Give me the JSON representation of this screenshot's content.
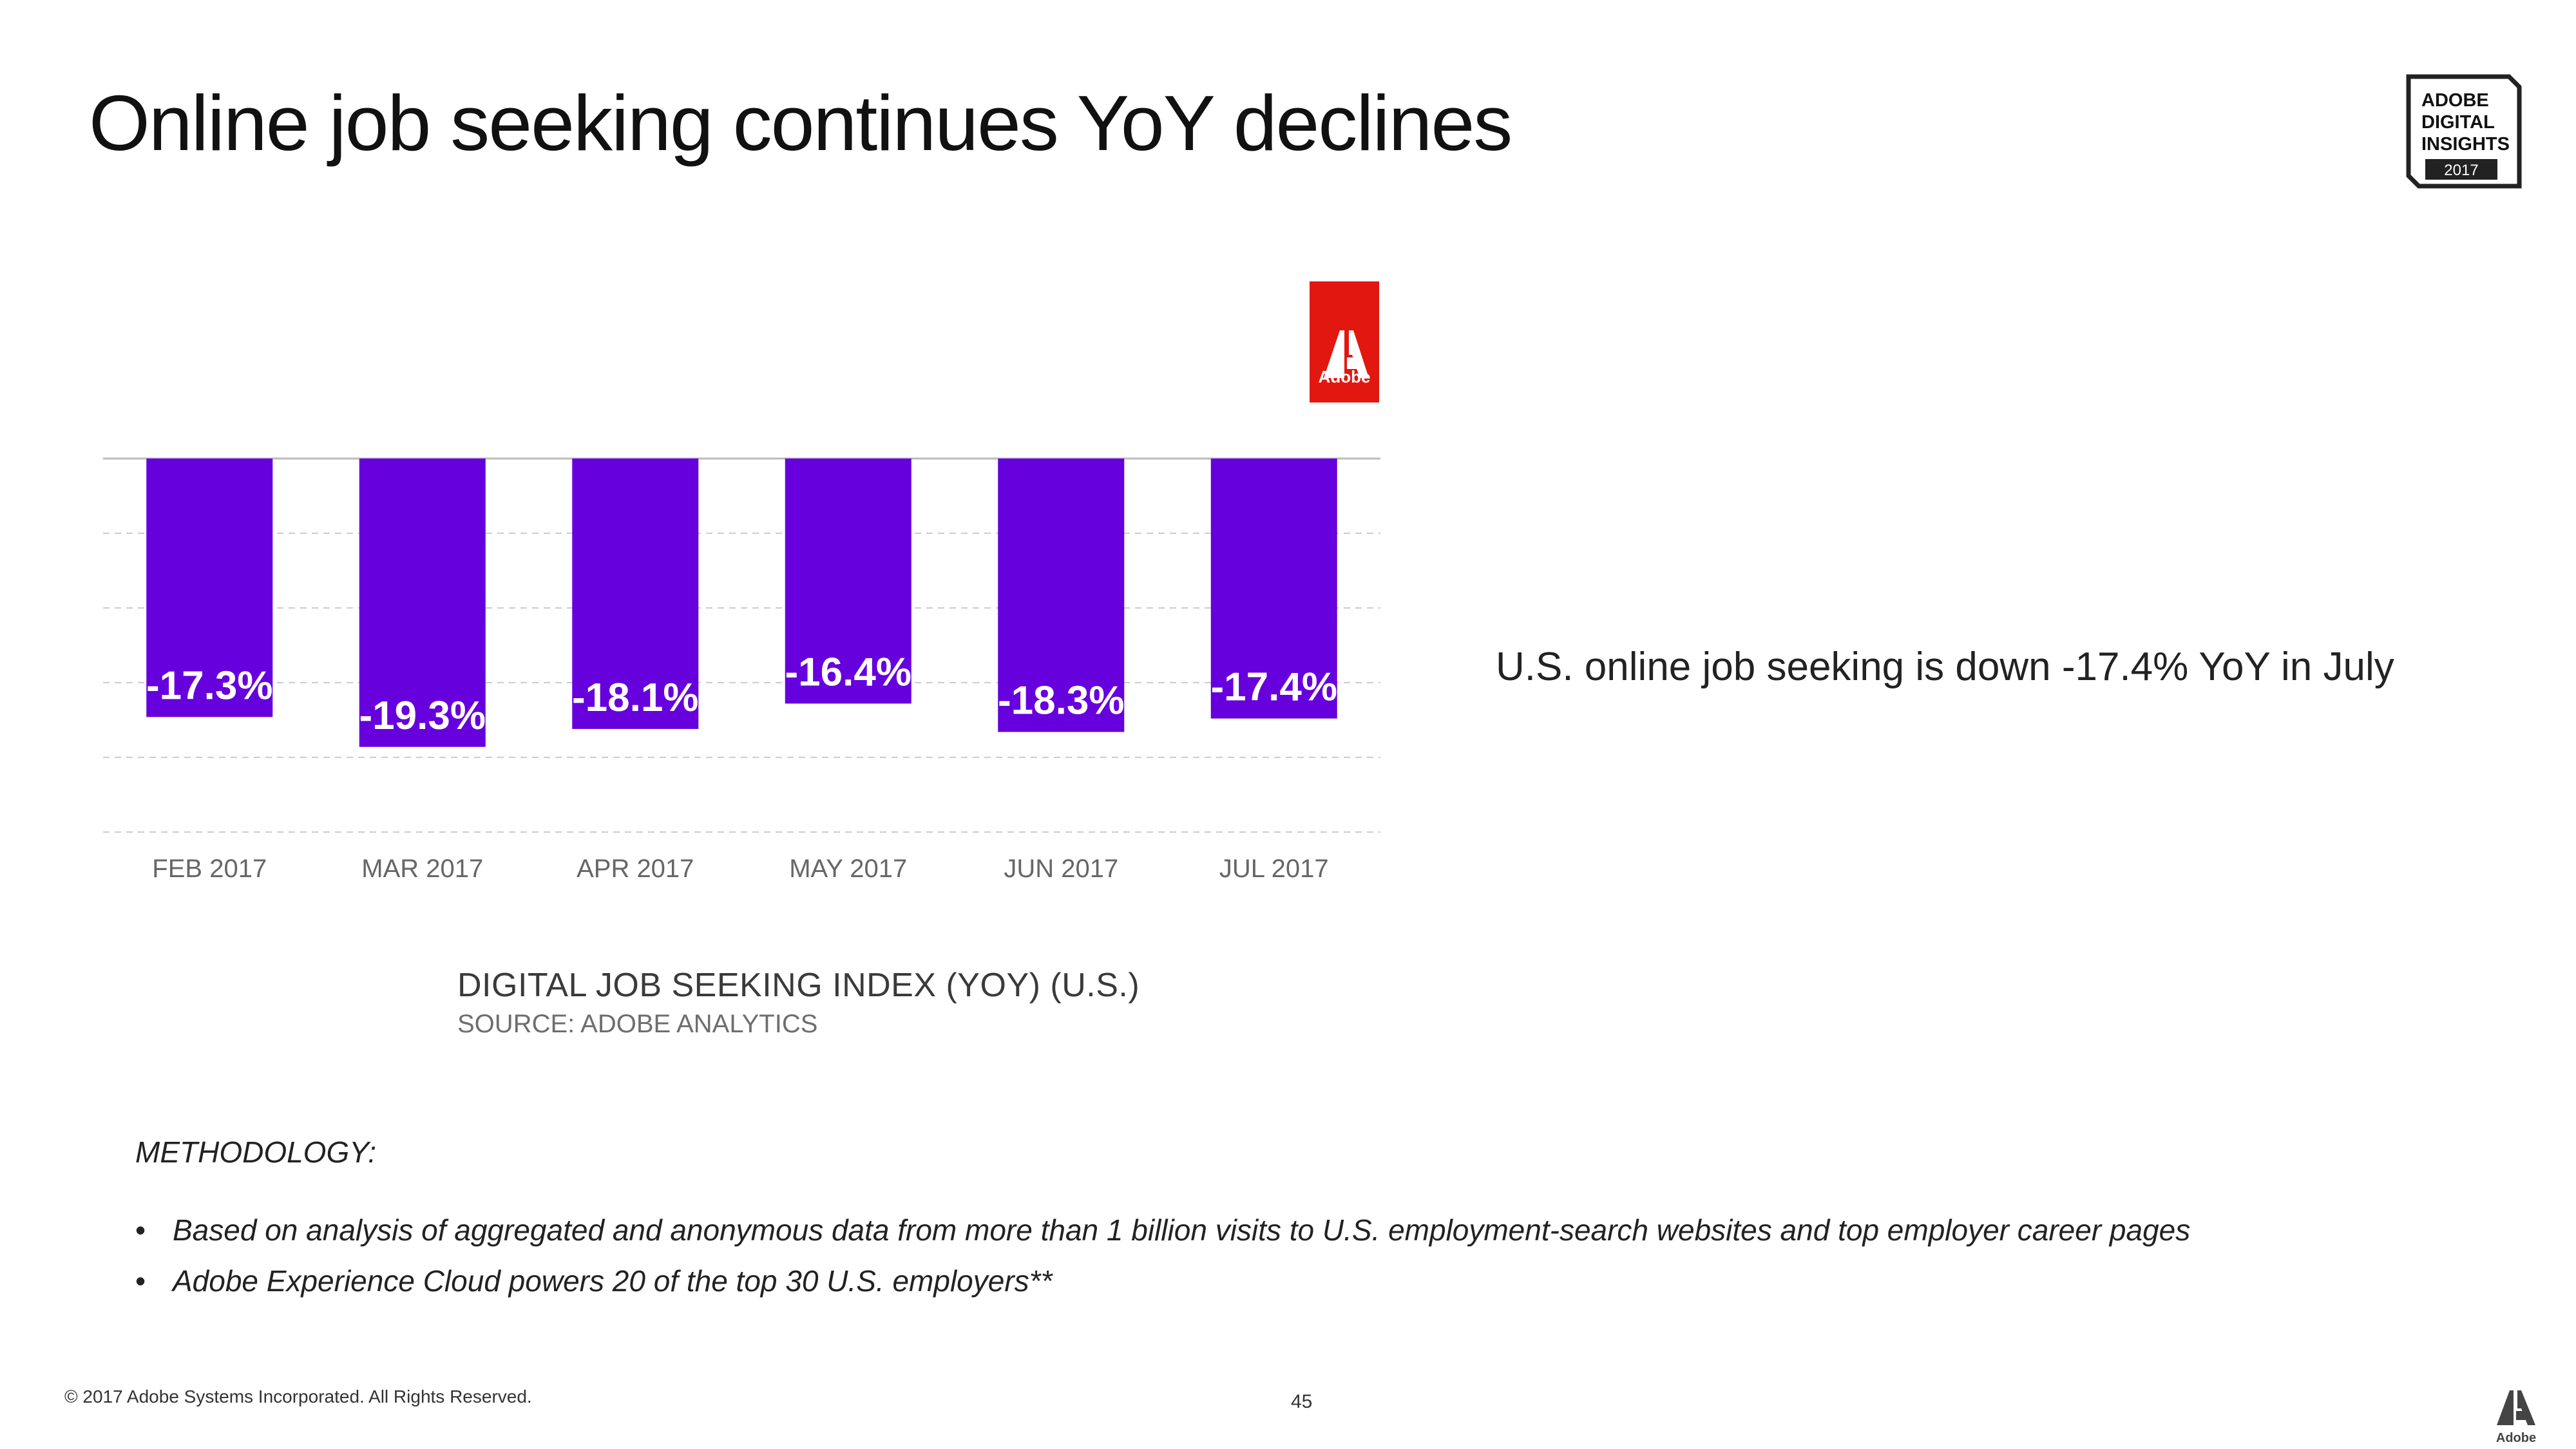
{
  "slide": {
    "title": "Online job seeking continues YoY declines",
    "callout": "U.S. online job seeking is down -17.4% YoY in July",
    "badge": {
      "line1": "ADOBE",
      "line2": "DIGITAL",
      "line3": "INSIGHTS",
      "year": "2017"
    },
    "adobe_logo_label": "Adobe",
    "methodology": {
      "heading": "METHODOLOGY:",
      "bullets": [
        "Based on analysis of aggregated and anonymous data from more than 1 billion visits to U.S. employment-search websites and top employer career pages",
        "Adobe Experience Cloud powers 20 of the top 30 U.S. employers**"
      ]
    },
    "footer": {
      "copyright": "© 2017 Adobe Systems Incorporated.  All Rights Reserved.",
      "page_number": "45",
      "corner_logo_label": "Adobe"
    },
    "colors": {
      "bar": "#6600dd",
      "adobe_red": "#e2170f",
      "gridline": "#cccccc"
    }
  },
  "chart_data": {
    "type": "bar",
    "title": "DIGITAL JOB SEEKING INDEX (YOY) (U.S.)",
    "subtitle": "SOURCE: ADOBE ANALYTICS",
    "categories": [
      "FEB 2017",
      "MAR 2017",
      "APR 2017",
      "MAY 2017",
      "JUN 2017",
      "JUL 2017"
    ],
    "values": [
      -17.3,
      -19.3,
      -18.1,
      -16.4,
      -18.3,
      -17.4
    ],
    "data_labels": [
      "-17.3%",
      "-19.3%",
      "-18.1%",
      "-16.4%",
      "-18.3%",
      "-17.4%"
    ],
    "ylim": [
      -25,
      0
    ],
    "xlabel": "",
    "ylabel": "",
    "grid": true
  }
}
